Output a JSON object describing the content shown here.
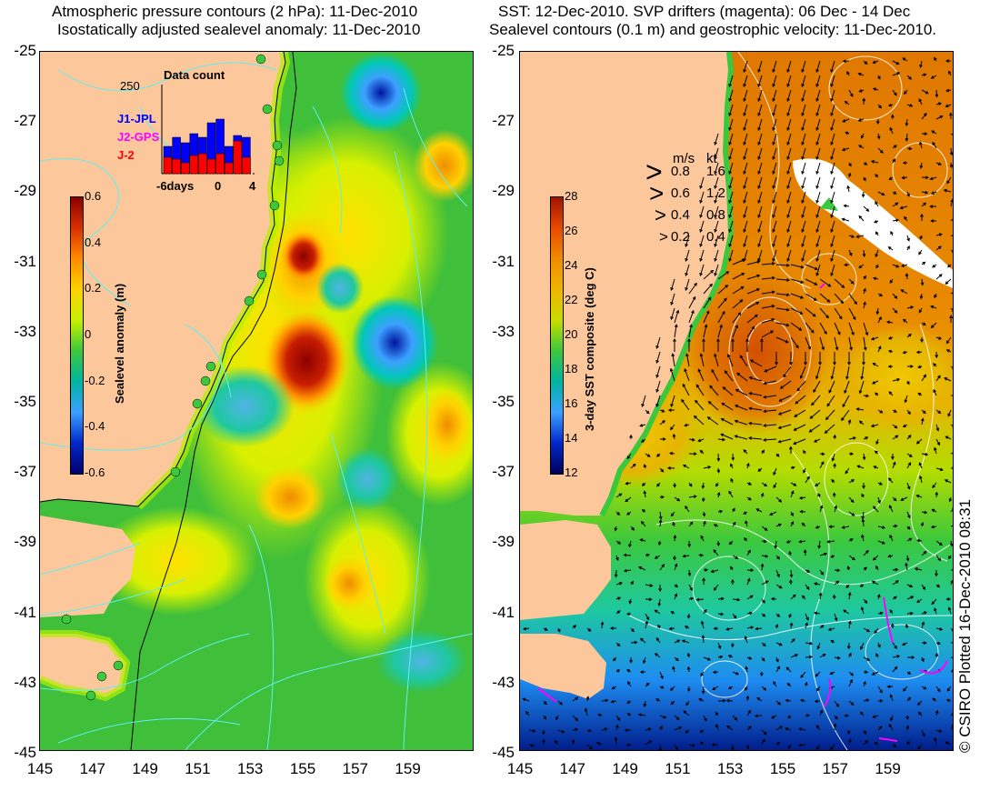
{
  "left_panel": {
    "title_line1": "Atmospheric pressure contours (2 hPa): 11-Dec-2010",
    "title_line2": "Isostatically adjusted sealevel anomaly: 11-Dec-2010",
    "colorbar": {
      "title": "Sealevel anomaly (m)",
      "ticks": [
        "0.6",
        "0.4",
        "0.2",
        "0",
        "-0.2",
        "-0.4",
        "-0.6"
      ],
      "colors": [
        "#8b0000",
        "#d73000",
        "#ff8c00",
        "#ffd200",
        "#c8f000",
        "#3cc83c",
        "#00b4a0",
        "#3ca0ff",
        "#0028c8",
        "#00006e"
      ]
    },
    "inset": {
      "title": "Data count",
      "ymax_label": "250",
      "x_labels": [
        "-6days",
        "0",
        "4"
      ],
      "legend": [
        {
          "label": "J1-JPL",
          "color": "#0000ff"
        },
        {
          "label": "J2-GPS",
          "color": "#ff00ff"
        },
        {
          "label": "J-2",
          "color": "#ff0000"
        }
      ]
    }
  },
  "right_panel": {
    "title_line1": "SST: 12-Dec-2010. SVP drifters (magenta): 06 Dec - 14 Dec",
    "title_line2": "Sealevel contours (0.1 m) and geostrophic velocity: 11-Dec-2010.",
    "colorbar": {
      "title": "3-day SST composite (deg C)",
      "ticks": [
        "28",
        "26",
        "24",
        "22",
        "20",
        "18",
        "16",
        "14",
        "12"
      ],
      "colors": [
        "#a01400",
        "#e64a00",
        "#f08c00",
        "#f0b400",
        "#c8dc00",
        "#3cc83c",
        "#00b4a0",
        "#3ca0ff",
        "#0028c8",
        "#00005a"
      ]
    },
    "velocity_legend": {
      "header_ms": "m/s",
      "header_kt": "kt",
      "rows": [
        {
          "ms": "0.8",
          "kt": "1.6"
        },
        {
          "ms": "0.6",
          "kt": "1.2"
        },
        {
          "ms": "0.4",
          "kt": "0.8"
        },
        {
          "ms": "0.2",
          "kt": "0.4"
        }
      ]
    }
  },
  "axes": {
    "y_labels": [
      "-25",
      "-27",
      "-29",
      "-31",
      "-33",
      "-35",
      "-37",
      "-39",
      "-41",
      "-43",
      "-45"
    ],
    "x_labels": [
      "145",
      "147",
      "149",
      "151",
      "153",
      "155",
      "157",
      "159"
    ]
  },
  "credit": "© CSIRO Plotted 16-Dec-2010 08:31",
  "colors": {
    "land": "#fcc89b",
    "coast_outline": "#000000",
    "contour": "#5ff0f0"
  }
}
